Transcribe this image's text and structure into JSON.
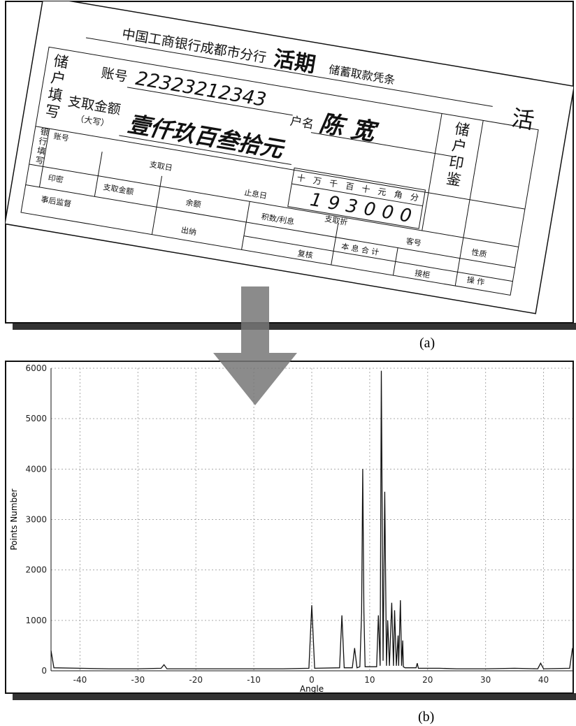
{
  "slip": {
    "labels": [
      "中国工商银行成都市分行",
      "活期",
      "储蓄取款凭条",
      "活",
      "储户填写",
      "账号",
      "22323212343",
      "户名",
      "陈 宽",
      "支取金额",
      "（大写）",
      "壹仟玖百叁拾元",
      "十万千百十元角分",
      "193000",
      "储户印鉴",
      "银行填写",
      "账号",
      "支取日",
      "止息日",
      "支取折",
      "印密",
      "支取金额",
      "余额",
      "积数/利息",
      "本 息 合 计",
      "事后监督",
      "出纳",
      "复核",
      "客号",
      "性质",
      "操  作",
      "接柜"
    ]
  },
  "captions": [
    "(a)",
    "(b)"
  ],
  "chart_data": {
    "type": "line",
    "xlabel": "Angle",
    "ylabel": "Points Number",
    "x": [
      -45,
      -44.5,
      -40,
      -35,
      -30,
      -26,
      -25.5,
      -25,
      -20,
      -15,
      -10,
      -5,
      -0.5,
      0,
      0.5,
      4.8,
      5.2,
      5.6,
      7.0,
      7.4,
      7.8,
      8.3,
      8.6,
      8.8,
      9.0,
      9.2,
      11.2,
      11.5,
      11.8,
      12.0,
      12.3,
      12.6,
      12.9,
      13.1,
      13.4,
      13.8,
      14.1,
      14.3,
      14.6,
      14.9,
      15.0,
      15.3,
      15.5,
      15.7,
      15.8,
      16.1,
      18.0,
      18.2,
      18.4,
      22,
      25,
      30,
      35,
      39,
      39.5,
      40,
      44.5,
      45
    ],
    "series": [
      {
        "color": "#111111",
        "values": [
          400,
          60,
          50,
          40,
          40,
          50,
          120,
          40,
          40,
          40,
          40,
          40,
          50,
          1300,
          50,
          60,
          1100,
          60,
          60,
          450,
          60,
          80,
          1150,
          4000,
          1150,
          80,
          80,
          1100,
          100,
          5950,
          200,
          3550,
          100,
          1000,
          100,
          1350,
          100,
          1200,
          100,
          700,
          100,
          1400,
          100,
          600,
          80,
          60,
          60,
          150,
          50,
          50,
          40,
          40,
          50,
          40,
          150,
          40,
          50,
          450
        ]
      }
    ],
    "xlim": [
      -45,
      45
    ],
    "xticks": [
      -40,
      -30,
      -20,
      -10,
      0,
      10,
      20,
      30,
      40
    ],
    "ylim": [
      0,
      6000
    ],
    "yticks": [
      0,
      1000,
      2000,
      3000,
      4000,
      5000,
      6000
    ],
    "grid": true
  }
}
